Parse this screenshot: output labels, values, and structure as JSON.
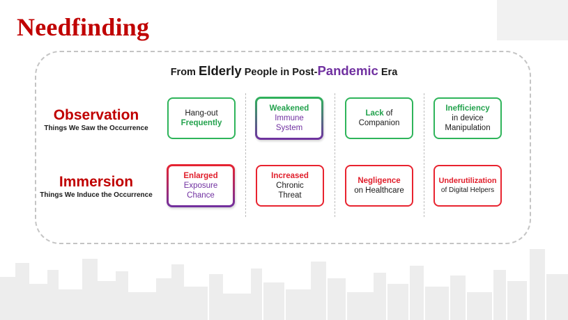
{
  "title": "Needfinding",
  "subtitle": {
    "part1": "From ",
    "word1": "Elderly",
    "part2": " People in Post-",
    "word2": "Pandemic",
    "part3": " Era"
  },
  "rows": {
    "observation": {
      "label": "Observation",
      "sublabel": "Things We Saw the Occurrence"
    },
    "immersion": {
      "label": "Immersion",
      "sublabel": "Things We Induce the Occurrence"
    }
  },
  "observation_cards": {
    "c1": {
      "line1": "Hang-out",
      "line2": "Frequently"
    },
    "c2": {
      "line1": "Weakened",
      "line2": "Immune",
      "line3": "System"
    },
    "c3": {
      "bold": "Lack",
      "rest": " of",
      "line2": "Companion"
    },
    "c4": {
      "line1": "Inefficiency",
      "line2": "in device",
      "line3": "Manipulation"
    }
  },
  "immersion_cards": {
    "c1": {
      "line1": "Enlarged",
      "line2": "Exposure",
      "line3": "Chance"
    },
    "c2": {
      "line1": "Increased",
      "line2": "Chronic",
      "line3": "Threat"
    },
    "c3": {
      "line1": "Negligence",
      "line2": "on Healthcare"
    },
    "c4": {
      "line1": "Underutilization",
      "line2": "of Digital Helpers"
    }
  },
  "colors": {
    "title_red": "#c00000",
    "card_green": "#2eb45a",
    "card_red": "#e8232f",
    "accent_purple": "#7030a0"
  }
}
